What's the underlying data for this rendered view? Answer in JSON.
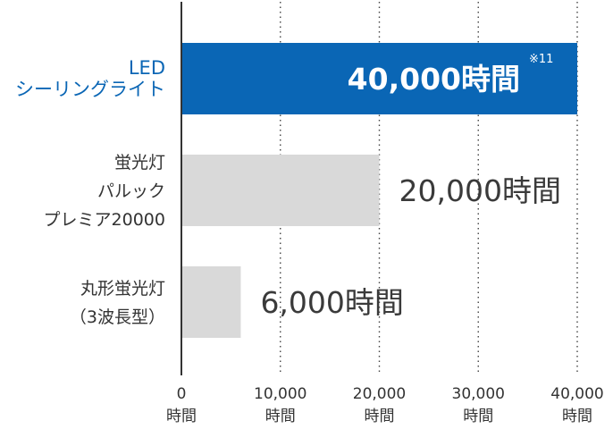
{
  "chart_data": {
    "type": "bar",
    "orientation": "horizontal",
    "categories": [
      [
        "LED",
        "シーリングライト"
      ],
      [
        "蛍光灯",
        "パルック",
        "プレミア20000"
      ],
      [
        "丸形蛍光灯",
        "（3波長型）"
      ]
    ],
    "values": [
      40000,
      20000,
      6000
    ],
    "value_labels": [
      "40,000時間",
      "20,000時間",
      "6,000時間"
    ],
    "highlight_index": 0,
    "note": "※11",
    "xlim": [
      0,
      40000
    ],
    "x_ticks": [
      0,
      10000,
      20000,
      30000,
      40000
    ],
    "x_tick_labels": [
      [
        "0",
        "時間"
      ],
      [
        "10,000",
        "時間"
      ],
      [
        "20,000",
        "時間"
      ],
      [
        "30,000",
        "時間"
      ],
      [
        "40,000",
        "時間"
      ]
    ],
    "grid": "vertical dotted",
    "colors": {
      "highlight": "#0a66b5",
      "bar": "#d9d9d9",
      "axis": "#333333",
      "grid": "#444444"
    }
  }
}
